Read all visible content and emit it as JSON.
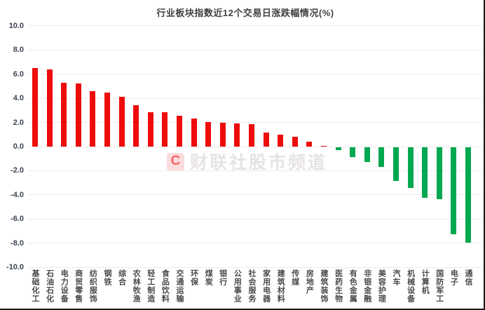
{
  "title": "行业板块指数近12个交易日涨跌幅情况(%)",
  "watermark": {
    "logo_letter": "C",
    "text": "财联社股市频道"
  },
  "colors": {
    "positive_bar": "#ee0b0b",
    "negative_bar": "#00a84f",
    "gridline": "#ebebeb",
    "axis_text": "#3d4451",
    "category_text": "#4a4a4a",
    "title_text": "#3f3f3f",
    "edge_border": "#1a1a1a",
    "watermark_red": "#ed1c24"
  },
  "chart_data": {
    "type": "bar",
    "title": "行业板块指数近12个交易日涨跌幅情况(%)",
    "xlabel": "",
    "ylabel": "",
    "ylim": [
      -10,
      10
    ],
    "grid": true,
    "legend": false,
    "yticks": [
      10,
      8,
      6,
      4,
      2,
      0,
      -2,
      -4,
      -6,
      -8,
      -10
    ],
    "ytick_labels": [
      "10.0",
      "8.0",
      "6.0",
      "4.0",
      "2.0",
      "0.0",
      "-2.0",
      "-4.0",
      "-6.0",
      "-8.0",
      "-10.0"
    ],
    "categories": [
      "基础化工",
      "石油石化",
      "电力设备",
      "商贸零售",
      "纺织服饰",
      "钢铁",
      "综合",
      "农林牧渔",
      "轻工制造",
      "食品饮料",
      "交通运输",
      "环保",
      "煤炭",
      "银行",
      "公用事业",
      "社会服务",
      "家用电器",
      "建筑材料",
      "传媒",
      "房地产",
      "建筑装饰",
      "医药生物",
      "有色金属",
      "非银金融",
      "美容护理",
      "汽车",
      "机械设备",
      "计算机",
      "国防军工",
      "电子",
      "通信"
    ],
    "values": [
      6.5,
      6.4,
      5.3,
      5.25,
      4.6,
      4.45,
      4.1,
      3.45,
      2.85,
      2.85,
      2.55,
      2.35,
      2.05,
      2.0,
      1.9,
      1.85,
      1.15,
      1.0,
      0.8,
      0.4,
      0.05,
      -0.25,
      -0.8,
      -1.2,
      -1.65,
      -2.8,
      -3.35,
      -4.2,
      -4.3,
      -7.2,
      -7.9
    ]
  }
}
